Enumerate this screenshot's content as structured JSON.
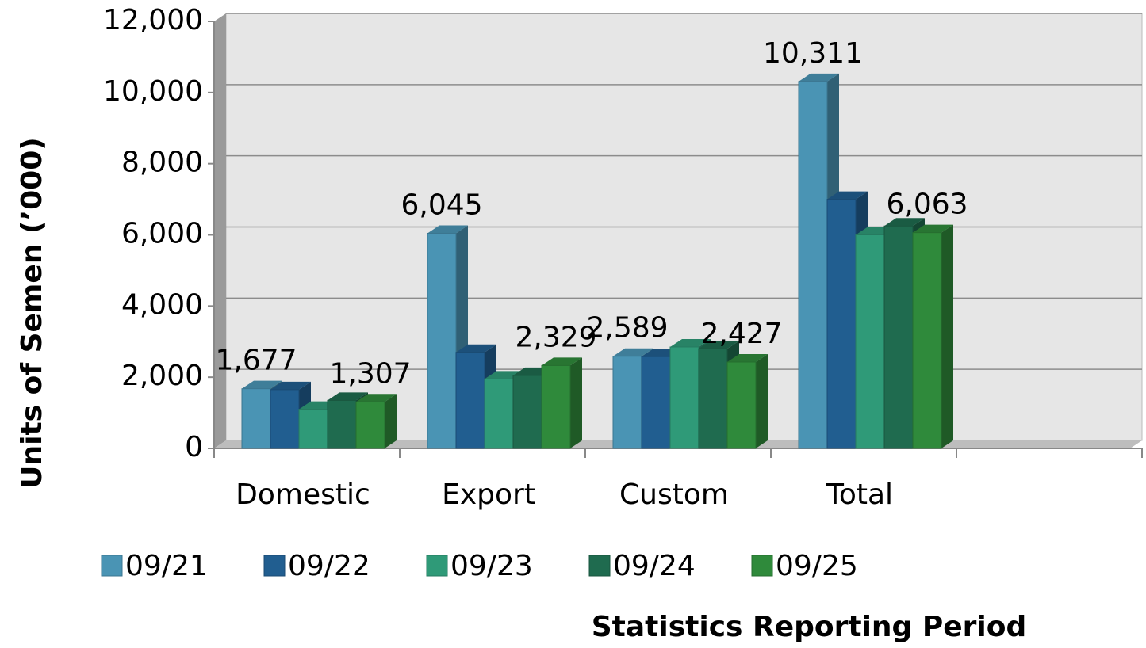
{
  "chart_data": {
    "type": "bar",
    "y_label": "Units of Semen (’000)",
    "x_label": "Statistics Reporting Period",
    "categories": [
      "Domestic",
      "Export",
      "Custom",
      "Total",
      null
    ],
    "series": [
      {
        "name": "09/21",
        "color": "#4a94b4",
        "values": [
          1677,
          6045,
          2589,
          10311,
          null
        ],
        "value_labels": [
          "1,677",
          "6,045",
          "2,589",
          "10,311",
          null
        ]
      },
      {
        "name": "09/22",
        "color": "#215e90",
        "values": [
          1650,
          2700,
          2580,
          7000,
          null
        ]
      },
      {
        "name": "09/23",
        "color": "#2f9a78",
        "values": [
          1100,
          1950,
          2850,
          6000,
          null
        ]
      },
      {
        "name": "09/24",
        "color": "#1f6b4f",
        "values": [
          1350,
          2050,
          2800,
          6250,
          null
        ]
      },
      {
        "name": "09/25",
        "color": "#2f8a3b",
        "values": [
          1307,
          2329,
          2427,
          6063,
          null
        ],
        "value_labels": [
          "1,307",
          "2,329",
          "2,427",
          "6,063",
          null
        ]
      }
    ],
    "ylim": [
      0,
      12000
    ],
    "yticks": [
      0,
      {
        "value": 2000,
        "label": "2,000"
      },
      {
        "value": 4000,
        "label": "4,000"
      },
      {
        "value": 6000,
        "label": "6,000"
      },
      {
        "value": 8000,
        "label": "8,000"
      },
      {
        "value": 10000,
        "label": "10,000"
      },
      {
        "value": 12000,
        "label": "12,000"
      }
    ],
    "grid": true
  }
}
